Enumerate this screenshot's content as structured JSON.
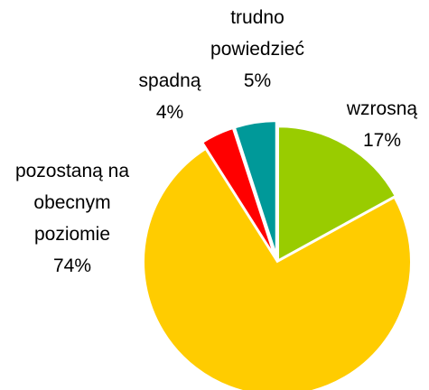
{
  "chart_data": {
    "type": "pie",
    "categories": [
      "wzrosną",
      "pozostaną na obecnym poziomie",
      "spadną",
      "trudno powiedzieć"
    ],
    "values": [
      17,
      74,
      4,
      5
    ],
    "value_labels": [
      "17%",
      "74%",
      "4%",
      "5%"
    ],
    "colors": [
      "#99cc00",
      "#ffcc00",
      "#ff0000",
      "#009999"
    ]
  }
}
